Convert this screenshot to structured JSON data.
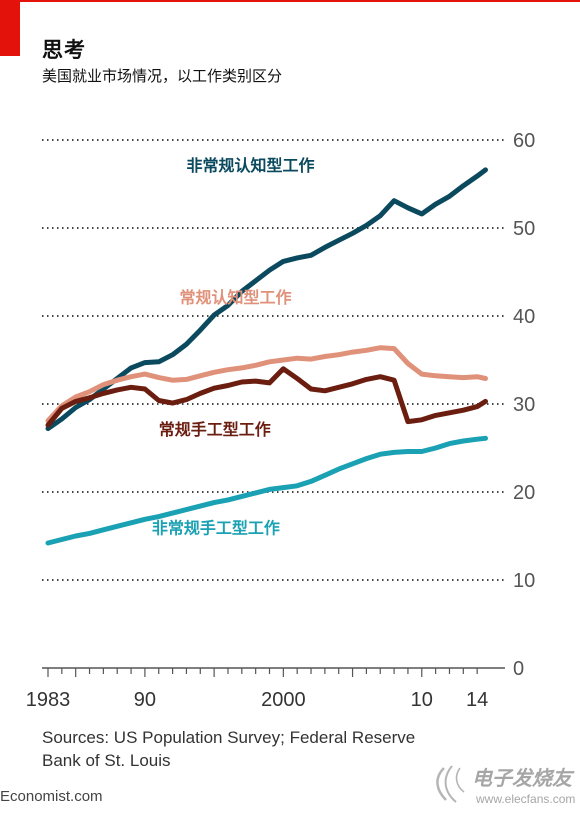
{
  "header": {
    "title": "思考",
    "subtitle": "美国就业市场情况，以工作类别区分"
  },
  "chart_data": {
    "type": "line",
    "title": "思考",
    "subtitle": "美国就业市场情况，以工作类别区分",
    "xlabel": "",
    "ylabel": "",
    "xlim": [
      1983,
      2015
    ],
    "ylim": [
      0,
      60
    ],
    "yticks": [
      0,
      10,
      20,
      30,
      40,
      50,
      60
    ],
    "xticks": [
      1983,
      1990,
      2000,
      2010,
      2014
    ],
    "xtick_labels": [
      "1983",
      "90",
      "2000",
      "10",
      "14"
    ],
    "grid": true,
    "series": [
      {
        "name": "非常规认知型工作",
        "color": "#0b4a5e",
        "label_color": "#0b4a5e",
        "x": [
          1983,
          1984,
          1985,
          1986,
          1987,
          1988,
          1989,
          1990,
          1991,
          1992,
          1993,
          1994,
          1995,
          1996,
          1997,
          1998,
          1999,
          2000,
          2001,
          2002,
          2003,
          2004,
          2005,
          2006,
          2007,
          2008,
          2009,
          2010,
          2011,
          2012,
          2013,
          2014,
          2014.6
        ],
        "y": [
          27.2,
          28.3,
          29.6,
          30.5,
          31.7,
          32.9,
          34.1,
          34.7,
          34.8,
          35.6,
          36.8,
          38.4,
          40.1,
          41.2,
          42.8,
          44.0,
          45.2,
          46.2,
          46.6,
          46.9,
          47.8,
          48.6,
          49.4,
          50.3,
          51.4,
          53.1,
          52.3,
          51.6,
          52.7,
          53.6,
          54.8,
          55.9,
          56.6
        ]
      },
      {
        "name": "常规认知型工作",
        "color": "#e0917a",
        "label_color": "#e0917a",
        "x": [
          1983,
          1984,
          1985,
          1986,
          1987,
          1988,
          1989,
          1990,
          1991,
          1992,
          1993,
          1994,
          1995,
          1996,
          1997,
          1998,
          1999,
          2000,
          2001,
          2002,
          2003,
          2004,
          2005,
          2006,
          2007,
          2008,
          2009,
          2010,
          2011,
          2012,
          2013,
          2014,
          2014.6
        ],
        "y": [
          28.1,
          29.8,
          30.8,
          31.4,
          32.2,
          32.7,
          33.1,
          33.4,
          33.0,
          32.7,
          32.8,
          33.2,
          33.6,
          33.9,
          34.1,
          34.4,
          34.8,
          35.0,
          35.2,
          35.1,
          35.4,
          35.6,
          35.9,
          36.1,
          36.4,
          36.3,
          34.6,
          33.4,
          33.2,
          33.1,
          33.0,
          33.1,
          32.9
        ]
      },
      {
        "name": "常规手工型工作",
        "color": "#6b1e10",
        "label_color": "#6b1e10",
        "x": [
          1983,
          1984,
          1985,
          1986,
          1987,
          1988,
          1989,
          1990,
          1991,
          1992,
          1993,
          1994,
          1995,
          1996,
          1997,
          1998,
          1999,
          2000,
          2001,
          2002,
          2003,
          2004,
          2005,
          2006,
          2007,
          2008,
          2009,
          2010,
          2011,
          2012,
          2013,
          2014,
          2014.6
        ],
        "y": [
          27.6,
          29.5,
          30.3,
          30.7,
          31.2,
          31.6,
          31.9,
          31.7,
          30.4,
          30.1,
          30.5,
          31.2,
          31.8,
          32.1,
          32.5,
          32.6,
          32.4,
          34.0,
          32.9,
          31.7,
          31.5,
          31.9,
          32.3,
          32.8,
          33.1,
          32.7,
          28.0,
          28.2,
          28.7,
          29.0,
          29.3,
          29.7,
          30.3
        ]
      },
      {
        "name": "非常规手工型工作",
        "color": "#1aa1b3",
        "label_color": "#1aa1b3",
        "x": [
          1983,
          1984,
          1985,
          1986,
          1987,
          1988,
          1989,
          1990,
          1991,
          1992,
          1993,
          1994,
          1995,
          1996,
          1997,
          1998,
          1999,
          2000,
          2001,
          2002,
          2003,
          2004,
          2005,
          2006,
          2007,
          2008,
          2009,
          2010,
          2011,
          2012,
          2013,
          2014,
          2014.6
        ],
        "y": [
          14.2,
          14.6,
          15.0,
          15.3,
          15.7,
          16.1,
          16.5,
          16.9,
          17.2,
          17.6,
          18.0,
          18.4,
          18.8,
          19.1,
          19.5,
          19.9,
          20.3,
          20.5,
          20.7,
          21.2,
          21.9,
          22.6,
          23.2,
          23.8,
          24.3,
          24.5,
          24.6,
          24.6,
          25.0,
          25.5,
          25.8,
          26.0,
          26.1
        ]
      }
    ]
  },
  "footer": {
    "source_line1": "Sources: US Population Survey; Federal Reserve",
    "source_line2": "Bank of St. Louis",
    "brand": "Economist.com"
  },
  "watermark": {
    "text_cn": "电子发烧友",
    "url": "www.elecfans.com"
  },
  "colors": {
    "accent": "#e3120b",
    "grid": "#444444",
    "axis_text": "#555555"
  }
}
